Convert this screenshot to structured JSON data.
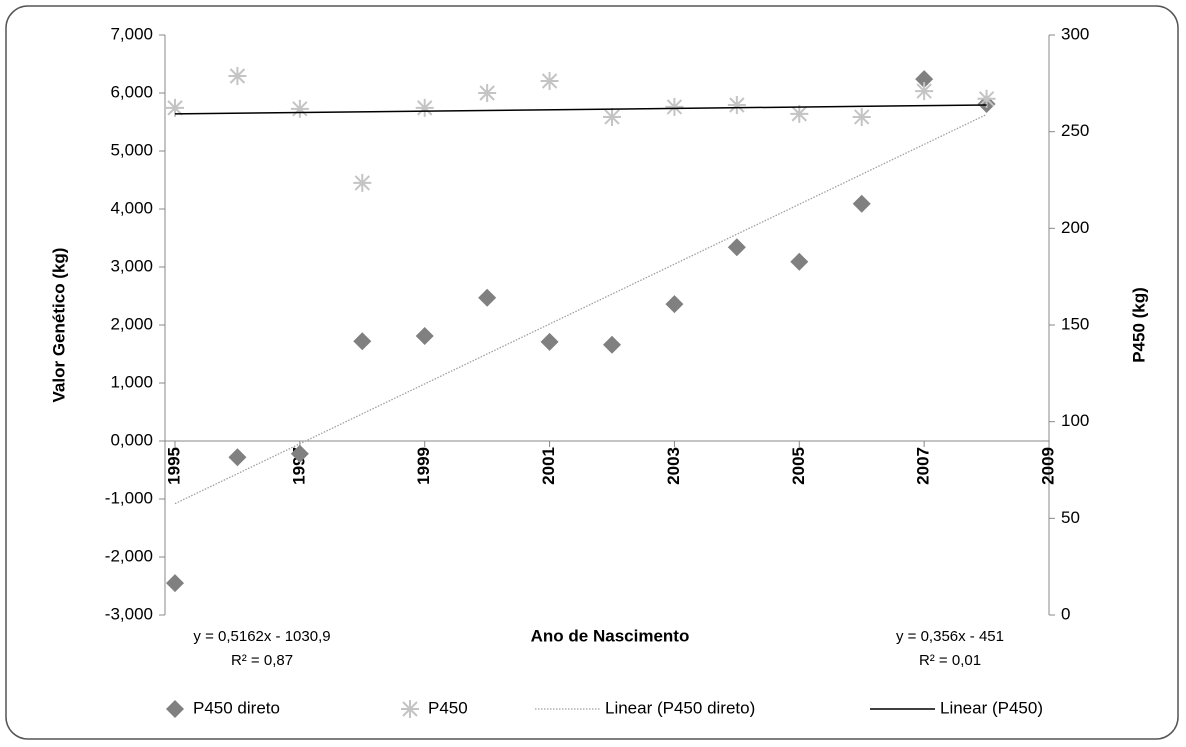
{
  "chart_data": {
    "type": "scatter",
    "x_label": "Ano de Nascimento",
    "y_label": "Valor Genético (kg)",
    "y2_label": "P450 (kg)",
    "x": [
      1995,
      1996,
      1997,
      1998,
      1999,
      2000,
      2001,
      2002,
      2003,
      2004,
      2005,
      2006,
      2007,
      2008
    ],
    "series": [
      {
        "name": "P450 direto",
        "color": "#808080",
        "marker": "diamond",
        "axis": "y",
        "values": [
          -2.45,
          -0.28,
          -0.22,
          1.72,
          1.81,
          2.47,
          1.71,
          1.66,
          2.36,
          3.34,
          3.09,
          4.09,
          6.24,
          5.81
        ]
      },
      {
        "name": "P450",
        "color": "#c4c4c4",
        "marker": "asterisk",
        "axis": "y2",
        "values": [
          262.3,
          278.8,
          261.8,
          223.5,
          262.3,
          270,
          276.2,
          257.6,
          262.8,
          263.8,
          259.2,
          257.6,
          271,
          267
        ]
      },
      {
        "name": "Linear (P450 direto)",
        "color": "#a0a0a0",
        "line": "dotted",
        "axis": "y",
        "x": [
          1995,
          2008
        ],
        "values": [
          -1.08,
          5.63
        ]
      },
      {
        "name": "Linear (P450)",
        "color": "#000000",
        "line": "solid",
        "axis": "y2",
        "x": [
          1995,
          2008
        ],
        "values": [
          259.2,
          263.8
        ]
      }
    ],
    "annotations": [
      "y = 0,5162x - 1030,9",
      "R² = 0,87",
      "y = 0,356x - 451",
      "R² = 0,01"
    ],
    "xlim": [
      1995,
      2009
    ],
    "xticks": [
      1995,
      1997,
      1999,
      2001,
      2003,
      2005,
      2007,
      2009
    ],
    "ylim": [
      -3,
      7
    ],
    "yticks": [
      {
        "value": -3,
        "label": "-3,000"
      },
      {
        "value": -2,
        "label": "-2,000"
      },
      {
        "value": -1,
        "label": "-1,000"
      },
      {
        "value": 0,
        "label": "0,000"
      },
      {
        "value": 1,
        "label": "1,000"
      },
      {
        "value": 2,
        "label": "2,000"
      },
      {
        "value": 3,
        "label": "3,000"
      },
      {
        "value": 4,
        "label": "4,000"
      },
      {
        "value": 5,
        "label": "5,000"
      },
      {
        "value": 6,
        "label": "6,000"
      },
      {
        "value": 7,
        "label": "7,000"
      }
    ],
    "y2lim": [
      0,
      300
    ],
    "y2ticks": [
      0,
      50,
      100,
      150,
      200,
      250,
      300
    ],
    "legend": "bottom",
    "grid": false
  }
}
